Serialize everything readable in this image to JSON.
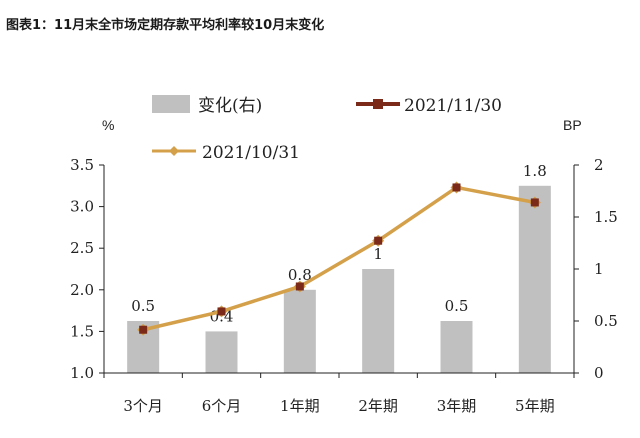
{
  "chart_data": {
    "type": "bar+line",
    "title": "图表1：11月末全市场定期存款平均利率较10月末变化",
    "categories": [
      "3个月",
      "6个月",
      "1年期",
      "2年期",
      "3年期",
      "5年期"
    ],
    "left_axis": {
      "unit": "%",
      "min": 1.0,
      "max": 3.5,
      "ticks": [
        "1.0",
        "1.5",
        "2.0",
        "2.5",
        "3.0",
        "3.5"
      ]
    },
    "right_axis": {
      "unit": "BP",
      "min": 0,
      "max": 2,
      "ticks": [
        "0",
        "0.5",
        "1",
        "1.5",
        "2"
      ]
    },
    "bars": {
      "name": "变化(右)",
      "axis": "right",
      "color": "#c0c0c0",
      "values": [
        0.5,
        0.4,
        0.8,
        1,
        0.5,
        1.8
      ],
      "labels": [
        "0.5",
        "0.4",
        "0.8",
        "1",
        "0.5",
        "1.8"
      ]
    },
    "series": [
      {
        "name": "2021/11/30",
        "axis": "left",
        "color": "#7b2a1a",
        "marker": "square",
        "values": [
          1.52,
          1.74,
          2.04,
          2.59,
          3.23,
          3.05
        ]
      },
      {
        "name": "2021/10/31",
        "axis": "left",
        "color": "#d4a04a",
        "marker": "diamond",
        "values": [
          1.52,
          1.74,
          2.04,
          2.59,
          3.23,
          3.05
        ]
      }
    ],
    "legend_placement": "top",
    "grid": false
  }
}
